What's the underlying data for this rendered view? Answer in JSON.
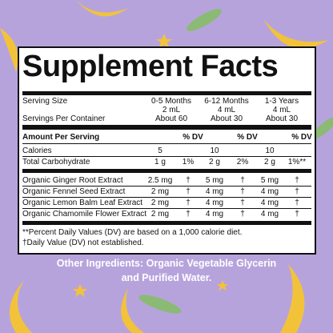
{
  "title": "Supplement Facts",
  "serving_size": {
    "label": "Serving Size",
    "columns": [
      {
        "age": "0-5 Months",
        "amount": "2 mL"
      },
      {
        "age": "6-12 Months",
        "amount": "4 mL"
      },
      {
        "age": "1-3 Years",
        "amount": "4 mL"
      }
    ]
  },
  "servings_per_container": {
    "label": "Servings Per Container",
    "values": [
      "About 60",
      "About 30",
      "About 30"
    ]
  },
  "amount_header": {
    "label": "Amount Per Serving",
    "dv": [
      "% DV",
      "% DV",
      "% DV"
    ]
  },
  "nutrients": [
    {
      "name": "Calories",
      "cells": [
        {
          "amount": "5"
        },
        {
          "amount": "10"
        },
        {
          "amount": "10"
        }
      ]
    },
    {
      "name": "Total Carbohydrate",
      "cells": [
        {
          "amount": "1 g",
          "dv": "1%"
        },
        {
          "amount": "2 g",
          "dv": "2%"
        },
        {
          "amount": "2 g",
          "dv": "1%**"
        }
      ]
    }
  ],
  "ingredients": [
    {
      "name": "Organic Ginger Root Extract",
      "cells": [
        {
          "amount": "2.5 mg",
          "dv": "†"
        },
        {
          "amount": "5 mg",
          "dv": "†"
        },
        {
          "amount": "5 mg",
          "dv": "†"
        }
      ]
    },
    {
      "name": "Organic Fennel Seed Extract",
      "cells": [
        {
          "amount": "2 mg",
          "dv": "†"
        },
        {
          "amount": "4 mg",
          "dv": "†"
        },
        {
          "amount": "4 mg",
          "dv": "†"
        }
      ]
    },
    {
      "name": "Organic Lemon Balm Leaf Extract",
      "cells": [
        {
          "amount": "2 mg",
          "dv": "†"
        },
        {
          "amount": "4 mg",
          "dv": "†"
        },
        {
          "amount": "4 mg",
          "dv": "†"
        }
      ]
    },
    {
      "name": "Organic Chamomile Flower Extract",
      "cells": [
        {
          "amount": "2 mg",
          "dv": "†"
        },
        {
          "amount": "4 mg",
          "dv": "†"
        },
        {
          "amount": "4 mg",
          "dv": "†"
        }
      ]
    }
  ],
  "footnotes": [
    "**Percent Daily Values (DV) are based on a 1,000 calorie diet.",
    "†Daily Value (DV) not established."
  ],
  "other_ingredients": [
    "Other Ingredients: Organic Vegetable Glycerin",
    "and Purified Water."
  ]
}
